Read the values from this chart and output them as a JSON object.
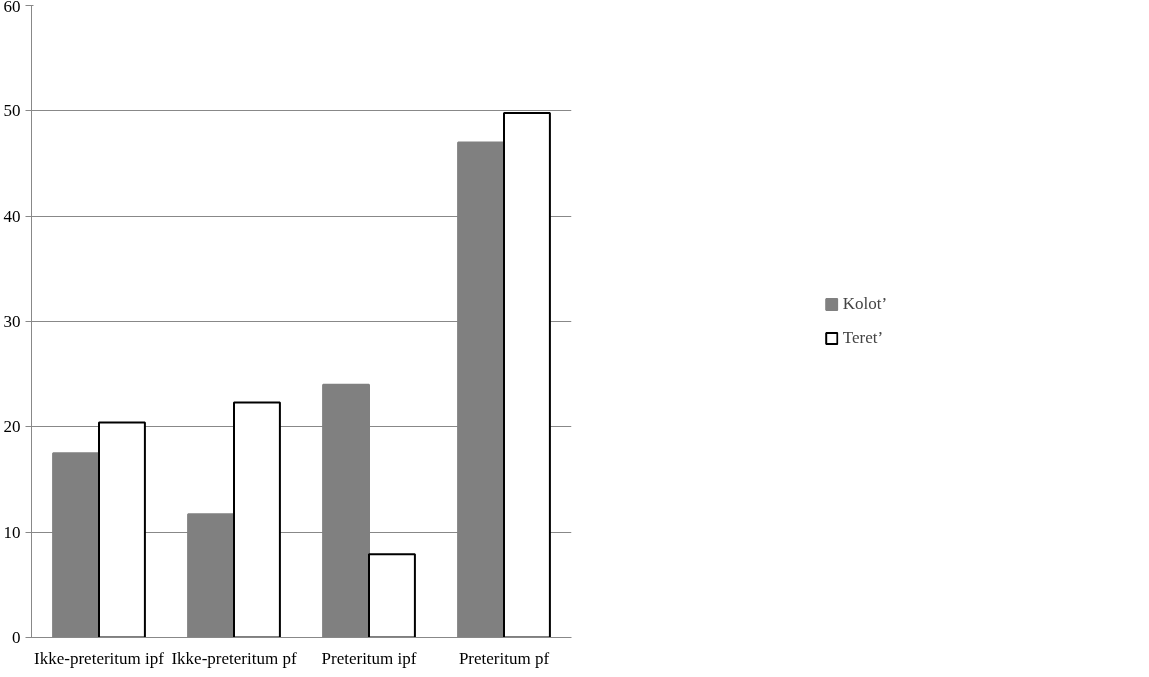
{
  "chart_data": {
    "type": "bar",
    "categories": [
      "Ikke-preteritum ipf",
      "Ikke-preteritum pf",
      "Preteritum ipf",
      "Preteritum pf"
    ],
    "series": [
      {
        "name": "Kolot’",
        "color": "#808080",
        "values": [
          17.5,
          11.7,
          24,
          47
        ]
      },
      {
        "name": "Teret’",
        "color": "#ffffff",
        "values": [
          20.4,
          22.3,
          7.9,
          49.8
        ]
      }
    ],
    "ylim": [
      0,
      60
    ],
    "yticks": [
      0,
      10,
      20,
      30,
      40,
      50,
      60
    ],
    "grid": "y",
    "legend": "right"
  }
}
